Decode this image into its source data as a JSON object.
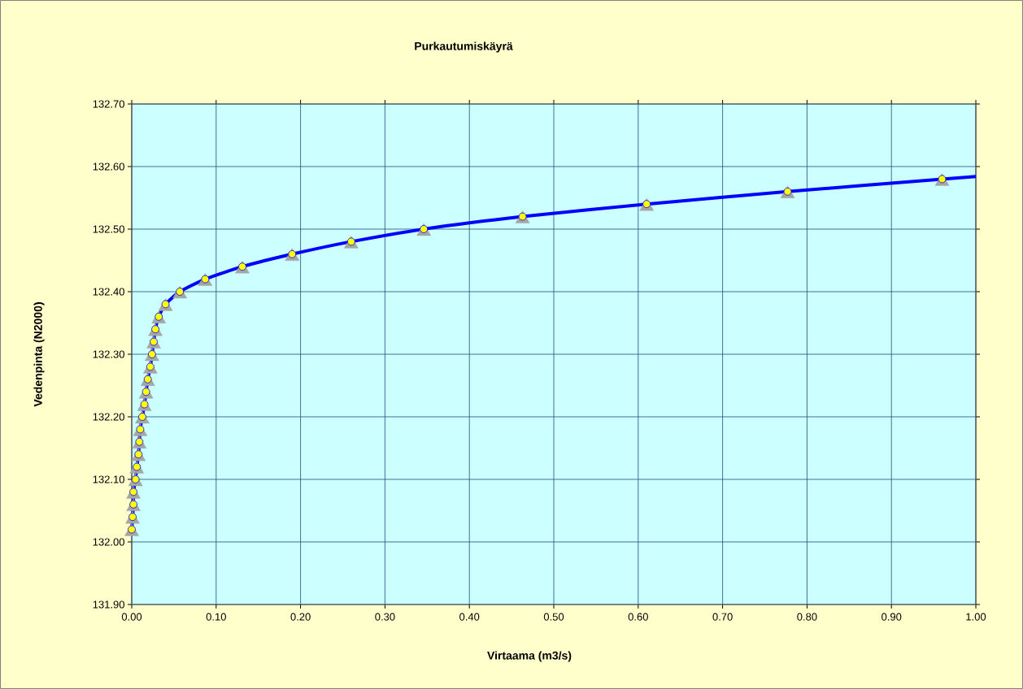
{
  "chart_data": {
    "type": "scatter",
    "title": "Purkautumiskäyrä",
    "xlabel": "Virtaama (m3/s)",
    "ylabel": "Vedenpinta (N2000)",
    "xlim": [
      0,
      1
    ],
    "ylim": [
      131.9,
      132.7
    ],
    "xticks": [
      {
        "value": 0,
        "label": "0.00"
      },
      {
        "value": 0.1,
        "label": "0.10"
      },
      {
        "value": 0.2,
        "label": "0.20"
      },
      {
        "value": 0.3,
        "label": "0.30"
      },
      {
        "value": 0.4,
        "label": "0.40"
      },
      {
        "value": 0.5,
        "label": "0.50"
      },
      {
        "value": 0.6,
        "label": "0.60"
      },
      {
        "value": 0.7,
        "label": "0.70"
      },
      {
        "value": 0.8,
        "label": "0.80"
      },
      {
        "value": 0.9,
        "label": "0.90"
      },
      {
        "value": 1,
        "label": "1.00"
      }
    ],
    "yticks": [
      {
        "value": 131.9,
        "label": "131.90"
      },
      {
        "value": 132,
        "label": "132.00"
      },
      {
        "value": 132.1,
        "label": "132.10"
      },
      {
        "value": 132.2,
        "label": "132.20"
      },
      {
        "value": 132.3,
        "label": "132.30"
      },
      {
        "value": 132.4,
        "label": "132.40"
      },
      {
        "value": 132.5,
        "label": "132.50"
      },
      {
        "value": 132.6,
        "label": "132.60"
      },
      {
        "value": 132.7,
        "label": "132.70"
      }
    ],
    "grid": true,
    "series": [
      {
        "marker": "triangle",
        "color": "#a6a6a6",
        "x": [
          0.0,
          0.001,
          0.002,
          0.002,
          0.0045,
          0.006,
          0.008,
          0.009,
          0.01,
          0.0125,
          0.015,
          0.017,
          0.019,
          0.022,
          0.024,
          0.026,
          0.028,
          0.032,
          0.04,
          0.057,
          0.087,
          0.131,
          0.19,
          0.26,
          0.346,
          0.463,
          0.61,
          0.777,
          0.96
        ],
        "values": [
          132.02,
          132.04,
          132.06,
          132.08,
          132.1,
          132.12,
          132.14,
          132.16,
          132.18,
          132.2,
          132.22,
          132.24,
          132.26,
          132.28,
          132.3,
          132.32,
          132.34,
          132.36,
          132.38,
          132.4,
          132.42,
          132.44,
          132.46,
          132.48,
          132.5,
          132.52,
          132.54,
          132.56,
          132.58
        ]
      },
      {
        "type": "line",
        "marker": "none",
        "line_style": "solid",
        "color": "#0000ff",
        "x": [
          0.0,
          0.001,
          0.002,
          0.002,
          0.0045,
          0.006,
          0.008,
          0.009,
          0.01,
          0.0125,
          0.015,
          0.017,
          0.019,
          0.022,
          0.024,
          0.026,
          0.028,
          0.032,
          0.04,
          0.057,
          0.087,
          0.131,
          0.19,
          0.26,
          0.346,
          0.463,
          0.61,
          0.777,
          0.96,
          1.0
        ],
        "values": [
          132.02,
          132.04,
          132.06,
          132.08,
          132.1,
          132.12,
          132.14,
          132.16,
          132.18,
          132.2,
          132.22,
          132.24,
          132.26,
          132.28,
          132.3,
          132.32,
          132.34,
          132.36,
          132.38,
          132.4,
          132.42,
          132.44,
          132.46,
          132.48,
          132.5,
          132.52,
          132.54,
          132.56,
          132.58,
          132.584
        ]
      },
      {
        "marker": "circle",
        "color": "#ffff00",
        "x": [
          0.0,
          0.001,
          0.002,
          0.002,
          0.0045,
          0.006,
          0.008,
          0.009,
          0.01,
          0.0125,
          0.015,
          0.017,
          0.019,
          0.022,
          0.024,
          0.026,
          0.028,
          0.032,
          0.04,
          0.057,
          0.087,
          0.131,
          0.19,
          0.26,
          0.346,
          0.463,
          0.61,
          0.777,
          0.96
        ],
        "values": [
          132.02,
          132.04,
          132.06,
          132.08,
          132.1,
          132.12,
          132.14,
          132.16,
          132.18,
          132.2,
          132.22,
          132.24,
          132.26,
          132.28,
          132.3,
          132.32,
          132.34,
          132.36,
          132.38,
          132.4,
          132.42,
          132.44,
          132.46,
          132.48,
          132.5,
          132.52,
          132.54,
          132.56,
          132.58
        ]
      }
    ]
  }
}
